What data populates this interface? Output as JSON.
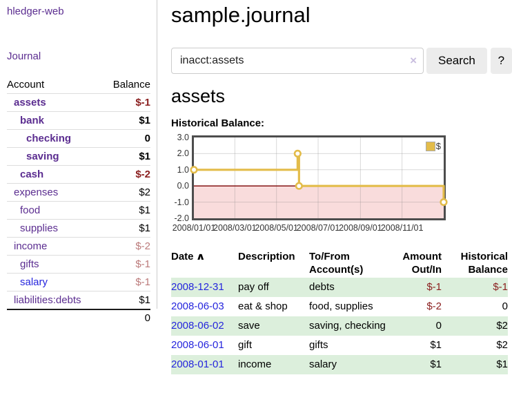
{
  "colors": {
    "purple": "#5b2d90",
    "blue": "#2525dd",
    "negative": "#8b2020",
    "negative-soft": "#bb7a7a",
    "green-row": "#dcefdc",
    "gold": "#e3bc4a"
  },
  "brand": "hledger-web",
  "sidebar": {
    "nav_journal": "Journal",
    "accounts": {
      "header_account": "Account",
      "header_balance": "Balance",
      "rows": [
        {
          "name": "assets",
          "balance": "$-1",
          "depth": 1,
          "strong": true,
          "balance_class": "neg-strong"
        },
        {
          "name": "bank",
          "balance": "$1",
          "depth": 2,
          "strong": true,
          "balance_class": "pos-strong"
        },
        {
          "name": "checking",
          "balance": "0",
          "depth": 3,
          "strong": true,
          "balance_class": "pos-strong"
        },
        {
          "name": "saving",
          "balance": "$1",
          "depth": 3,
          "strong": true,
          "balance_class": "pos-strong"
        },
        {
          "name": "cash",
          "balance": "$-2",
          "depth": 2,
          "strong": true,
          "balance_class": "neg-strong"
        },
        {
          "name": "expenses",
          "balance": "$2",
          "depth": 1,
          "strong": false,
          "balance_class": "pos"
        },
        {
          "name": "food",
          "balance": "$1",
          "depth": 2,
          "strong": false,
          "balance_class": "pos"
        },
        {
          "name": "supplies",
          "balance": "$1",
          "depth": 2,
          "strong": false,
          "balance_class": "pos"
        },
        {
          "name": "income",
          "balance": "$-2",
          "depth": 1,
          "strong": false,
          "balance_class": "neg"
        },
        {
          "name": "gifts",
          "balance": "$-1",
          "depth": 2,
          "strong": false,
          "balance_class": "neg"
        },
        {
          "name": "salary",
          "balance": "$-1",
          "depth": 2,
          "strong": false,
          "balance_class": "neg",
          "link_style": "blue"
        },
        {
          "name": "liabilities:debts",
          "balance": "$1",
          "depth": 1,
          "strong": false,
          "balance_class": "pos"
        }
      ],
      "total": "0"
    }
  },
  "main": {
    "title": "sample.journal",
    "search": {
      "value": "inacct:assets",
      "clear_icon": "×",
      "search_button": "Search",
      "help_button": "?"
    },
    "account_heading": "assets",
    "section_heading": "Historical Balance:",
    "transactions": {
      "header_date": "Date",
      "sort_icon": "∧",
      "header_description": "Description",
      "header_tofrom": "To/From Account(s)",
      "header_amount": "Amount Out/In",
      "header_balance": "Historical Balance",
      "rows": [
        {
          "date": "2008-12-31",
          "description": "pay off",
          "accounts": "debts",
          "amount": "$-1",
          "amount_neg": true,
          "balance": "$-1",
          "balance_neg": true
        },
        {
          "date": "2008-06-03",
          "description": "eat & shop",
          "accounts": "food, supplies",
          "amount": "$-2",
          "amount_neg": true,
          "balance": "0",
          "balance_neg": false
        },
        {
          "date": "2008-06-02",
          "description": "save",
          "accounts": "saving, checking",
          "amount": "0",
          "amount_neg": false,
          "balance": "$2",
          "balance_neg": false
        },
        {
          "date": "2008-06-01",
          "description": "gift",
          "accounts": "gifts",
          "amount": "$1",
          "amount_neg": false,
          "balance": "$2",
          "balance_neg": false
        },
        {
          "date": "2008-01-01",
          "description": "income",
          "accounts": "salary",
          "amount": "$1",
          "amount_neg": false,
          "balance": "$1",
          "balance_neg": false
        }
      ]
    }
  },
  "chart_data": {
    "type": "line",
    "title": "Historical Balance:",
    "ylim": [
      -2,
      3
    ],
    "grid": true,
    "step": true,
    "series": [
      {
        "name": "$",
        "color": "#e3bc4a",
        "points": [
          {
            "date": "2008-01-01",
            "x": 0.0,
            "y": 1
          },
          {
            "date": "2008-06-01",
            "x": 0.4153,
            "y": 2
          },
          {
            "date": "2008-06-03",
            "x": 0.4208,
            "y": 0
          },
          {
            "date": "2008-12-31",
            "x": 1.0,
            "y": -1
          }
        ]
      }
    ],
    "y_ticks": [
      {
        "y": 3,
        "label": "3.0"
      },
      {
        "y": 2,
        "label": "2.0"
      },
      {
        "y": 1,
        "label": "1.0"
      },
      {
        "y": 0,
        "label": "0.0"
      },
      {
        "y": -1,
        "label": "-1.0"
      },
      {
        "y": -2,
        "label": "-2.0"
      }
    ],
    "y_gridlines": [
      2,
      1,
      -1
    ],
    "x_ticks": [
      {
        "x": 0.0,
        "label": "2008/01/01"
      },
      {
        "x": 0.1639,
        "label": "2008/03/01"
      },
      {
        "x": 0.3306,
        "label": "2008/05/01"
      },
      {
        "x": 0.4973,
        "label": "2008/07/01"
      },
      {
        "x": 0.6667,
        "label": "2008/09/01"
      },
      {
        "x": 0.8333,
        "label": "2008/11/01"
      }
    ],
    "negative_region_color": "#f9dcdc",
    "zero_line_color": "#7a0000",
    "legend": {
      "label": "$",
      "position": "top-right"
    }
  }
}
